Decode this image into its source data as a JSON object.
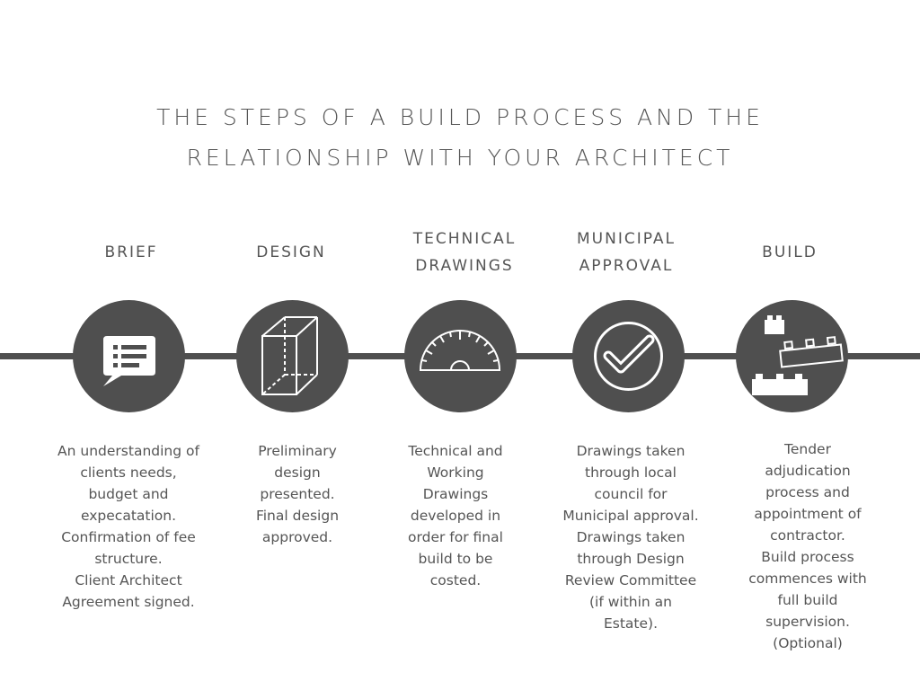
{
  "title": {
    "line1": "THE STEPS OF A BUILD PROCESS AND THE",
    "line2": "RELATIONSHIP WITH YOUR ARCHITECT"
  },
  "colors": {
    "dark": "#4f4f4f",
    "text": "#555555",
    "background": "#ffffff"
  },
  "steps": [
    {
      "label": [
        "BRIEF"
      ],
      "icon": "chat-list-icon",
      "description": [
        "An understanding of",
        "clients needs,",
        "budget and",
        "expecatation.",
        "Confirmation of fee",
        "structure.",
        "Client Architect",
        "Agreement signed."
      ]
    },
    {
      "label": [
        "DESIGN"
      ],
      "icon": "box-wireframe-icon",
      "description": [
        "Preliminary",
        "design",
        "presented.",
        "Final design",
        "approved."
      ]
    },
    {
      "label": [
        "TECHNICAL",
        "DRAWINGS"
      ],
      "icon": "protractor-icon",
      "description": [
        "Technical and",
        "Working",
        "Drawings",
        "developed in",
        "order for final",
        "build to be",
        "costed."
      ]
    },
    {
      "label": [
        "MUNICIPAL",
        "APPROVAL"
      ],
      "icon": "checkmark-icon",
      "description": [
        "Drawings taken",
        "through local",
        "council for",
        "Municipal approval.",
        "Drawings taken",
        "through Design",
        "Review Committee",
        "(if within an",
        "Estate)."
      ]
    },
    {
      "label": [
        "BUILD"
      ],
      "icon": "building-blocks-icon",
      "description": [
        "Tender",
        "adjudication",
        "process and",
        "appointment of",
        "contractor.",
        "Build process",
        "commences with",
        "full build",
        "supervision.",
        "(Optional)"
      ]
    }
  ]
}
